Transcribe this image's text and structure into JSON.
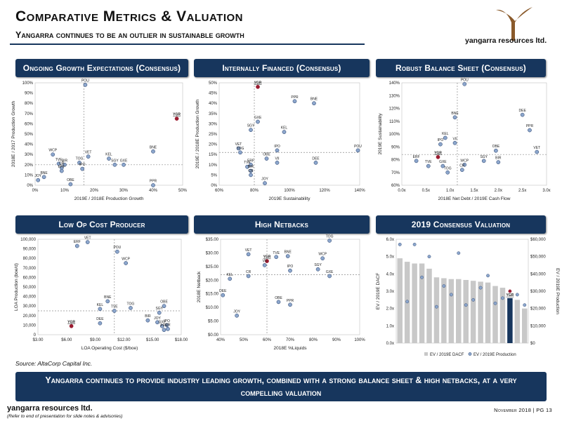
{
  "header": {
    "title": "Comparative Metrics & Valuation",
    "subtitle": "Yangarra continues to be an outlier in sustainable growth"
  },
  "logo": {
    "text": "yangarra resources ltd.",
    "glyph_color": "#8a5a2b"
  },
  "colors": {
    "navy": "#17365d",
    "point": "#8ca6cc",
    "point_edge": "#1f3864",
    "highlight": "#9b1b30",
    "bar": "#c8c8c8",
    "bar_dark": "#17365d"
  },
  "panels": {
    "p1": "Ongoing Growth Expectations (Consensus)",
    "p2": "Internally Financed (Consensus)",
    "p3": "Robust Balance Sheet (Consensus)",
    "p4": "Low Op Cost Producer",
    "p5": "High Netbacks",
    "p6": "2019 Consensus Valuation"
  },
  "source": "Source: AltaCorp Capital Inc.",
  "banner": "Yangarra continues to provide industry leading growth, combined with a strong balance sheet & high netbacks, at a very compelling valuation",
  "footer": {
    "brand": "yangarra resources ltd.",
    "note": "(Refer to end of presentation for slide notes & advisories)",
    "date": "November 2018 | PG 13"
  },
  "chart_data": [
    {
      "id": "growth",
      "type": "scatter",
      "xlabel": "2019E / 2018E Production Growth",
      "ylabel": "2018E / 2017 Production Growth",
      "xlim": [
        0,
        50
      ],
      "ylim": [
        0,
        100
      ],
      "xticks": [
        0,
        10,
        20,
        30,
        40,
        50
      ],
      "xfmt": "pct",
      "yticks": [
        0,
        10,
        20,
        30,
        40,
        50,
        60,
        70,
        80,
        90,
        100
      ],
      "yfmt": "pct",
      "ref_x": 16.5,
      "ref_y": 20,
      "points": [
        {
          "label": "POU",
          "x": 17,
          "y": 98
        },
        {
          "label": "YGR",
          "x": 48,
          "y": 65,
          "highlight": true
        },
        {
          "label": "BNE",
          "x": 40,
          "y": 33
        },
        {
          "label": "WCP",
          "x": 6,
          "y": 30
        },
        {
          "label": "VET",
          "x": 18,
          "y": 28
        },
        {
          "label": "KEL",
          "x": 25,
          "y": 26
        },
        {
          "label": "SGY",
          "x": 27,
          "y": 20
        },
        {
          "label": "GXE",
          "x": 30,
          "y": 20
        },
        {
          "label": "TVE",
          "x": 8,
          "y": 21
        },
        {
          "label": "BIR",
          "x": 10,
          "y": 20
        },
        {
          "label": "TOG",
          "x": 15,
          "y": 22
        },
        {
          "label": "CR",
          "x": 9,
          "y": 17
        },
        {
          "label": "IPO",
          "x": 16,
          "y": 16
        },
        {
          "label": "ERF",
          "x": 9,
          "y": 14
        },
        {
          "label": "BNE",
          "x": 3,
          "y": 8
        },
        {
          "label": "JOY",
          "x": 1,
          "y": 5
        },
        {
          "label": "OBE",
          "x": 12,
          "y": 1
        },
        {
          "label": "PPR",
          "x": 40,
          "y": -3
        }
      ]
    },
    {
      "id": "financed",
      "type": "scatter",
      "xlabel": "2019E Sustainability",
      "ylabel": "2019E / 2018E Production Growth",
      "xlim": [
        60,
        140
      ],
      "ylim": [
        0,
        50
      ],
      "xticks": [
        60,
        80,
        100,
        120,
        140
      ],
      "xfmt": "pct",
      "yticks": [
        0,
        5,
        10,
        15,
        20,
        25,
        30,
        35,
        40,
        45,
        50
      ],
      "yfmt": "pct",
      "ref_x": 80,
      "ref_y": 16,
      "points": [
        {
          "label": "YGR",
          "x": 82,
          "y": 48,
          "highlight": true
        },
        {
          "label": "PPR",
          "x": 103,
          "y": 41
        },
        {
          "label": "BNE",
          "x": 114,
          "y": 40
        },
        {
          "label": "GXE",
          "x": 82,
          "y": 31
        },
        {
          "label": "SGY",
          "x": 78,
          "y": 27
        },
        {
          "label": "KEL",
          "x": 97,
          "y": 26
        },
        {
          "label": "VET",
          "x": 71,
          "y": 18
        },
        {
          "label": "TOG",
          "x": 72,
          "y": 16
        },
        {
          "label": "IPO",
          "x": 93,
          "y": 17
        },
        {
          "label": "POU",
          "x": 139,
          "y": 17
        },
        {
          "label": "OBE",
          "x": 87,
          "y": 13
        },
        {
          "label": "DEE",
          "x": 115,
          "y": 11
        },
        {
          "label": "TVE",
          "x": 76,
          "y": 9
        },
        {
          "label": "ERF",
          "x": 78,
          "y": 10
        },
        {
          "label": "VII",
          "x": 93,
          "y": 11
        },
        {
          "label": "BIR",
          "x": 78,
          "y": 7
        },
        {
          "label": "CR",
          "x": 78,
          "y": 5
        },
        {
          "label": "JOY",
          "x": 86,
          "y": 1
        }
      ]
    },
    {
      "id": "balance",
      "type": "scatter",
      "xlabel": "2018E Net Debt / 2019E Cash Flow",
      "ylabel": "2019E Sustainability",
      "xlim": [
        0,
        3
      ],
      "ylim": [
        60,
        140
      ],
      "xticks": [
        0,
        0.5,
        1,
        1.5,
        2,
        2.5,
        3
      ],
      "xfmt": "x",
      "yticks": [
        60,
        70,
        80,
        90,
        100,
        110,
        120,
        130,
        140
      ],
      "yfmt": "pct",
      "ref_x": 1.15,
      "ref_y": 84,
      "points": [
        {
          "label": "POU",
          "x": 1.3,
          "y": 139
        },
        {
          "label": "DEE",
          "x": 2.5,
          "y": 115
        },
        {
          "label": "BNE",
          "x": 1.1,
          "y": 113
        },
        {
          "label": "PPR",
          "x": 2.65,
          "y": 103
        },
        {
          "label": "KEL",
          "x": 0.9,
          "y": 97
        },
        {
          "label": "VII",
          "x": 1.1,
          "y": 93
        },
        {
          "label": "IPO",
          "x": 0.8,
          "y": 92
        },
        {
          "label": "OBE",
          "x": 1.95,
          "y": 87
        },
        {
          "label": "VET",
          "x": 2.8,
          "y": 86
        },
        {
          "label": "YGR",
          "x": 0.75,
          "y": 82,
          "highlight": true
        },
        {
          "label": "ERF",
          "x": 0.3,
          "y": 79
        },
        {
          "label": "SGY",
          "x": 1.7,
          "y": 79
        },
        {
          "label": "BIR",
          "x": 2.0,
          "y": 78
        },
        {
          "label": "WCP",
          "x": 1.3,
          "y": 76
        },
        {
          "label": "TVE",
          "x": 0.55,
          "y": 75
        },
        {
          "label": "GXE",
          "x": 0.85,
          "y": 75
        },
        {
          "label": "CR",
          "x": 1.25,
          "y": 72
        },
        {
          "label": "TOG",
          "x": 0.95,
          "y": 70
        }
      ]
    },
    {
      "id": "opcost",
      "type": "scatter",
      "xlabel": "LOA Operating Cost ($/boe)",
      "ylabel": "LOA Production (boe/d)",
      "xlim": [
        3,
        18
      ],
      "ylim": [
        0,
        100000
      ],
      "xticks": [
        3,
        6,
        9,
        12,
        15,
        18
      ],
      "xfmt": "usd",
      "yticks": [
        0,
        10000,
        20000,
        30000,
        40000,
        50000,
        60000,
        70000,
        80000,
        90000,
        100000
      ],
      "yfmt": "num",
      "ref_x": 11,
      "ref_y": 25000,
      "points": [
        {
          "label": "VET",
          "x": 8.2,
          "y": 97000
        },
        {
          "label": "ERF",
          "x": 7.1,
          "y": 93000
        },
        {
          "label": "POU",
          "x": 11.3,
          "y": 87000
        },
        {
          "label": "WCP",
          "x": 12.2,
          "y": 75000
        },
        {
          "label": "BNE",
          "x": 10.3,
          "y": 35000
        },
        {
          "label": "KEL",
          "x": 9.5,
          "y": 27000
        },
        {
          "label": "TOG",
          "x": 12.7,
          "y": 28000
        },
        {
          "label": "OBE",
          "x": 16.2,
          "y": 30000
        },
        {
          "label": "SGY",
          "x": 15.7,
          "y": 23000
        },
        {
          "label": "TVE",
          "x": 11.0,
          "y": 25000
        },
        {
          "label": "BIR",
          "x": 14.5,
          "y": 15000
        },
        {
          "label": "DEE",
          "x": 9.5,
          "y": 12000
        },
        {
          "label": "JOY",
          "x": 15.5,
          "y": 13000
        },
        {
          "label": "IPO",
          "x": 16.5,
          "y": 10000
        },
        {
          "label": "GXE",
          "x": 16.0,
          "y": 9000
        },
        {
          "label": "YGR",
          "x": 6.5,
          "y": 9000,
          "highlight": true
        },
        {
          "label": "CR",
          "x": 16.6,
          "y": 6000
        },
        {
          "label": "PPR",
          "x": 16.2,
          "y": 5000
        }
      ]
    },
    {
      "id": "netbacks",
      "type": "scatter",
      "xlabel": "2018E %Liquids",
      "ylabel": "2018E Netback",
      "xlim": [
        40,
        100
      ],
      "ylim": [
        0,
        35
      ],
      "xticks": [
        40,
        50,
        60,
        70,
        80,
        90,
        100
      ],
      "xfmt": "pct",
      "yticks": [
        0,
        5,
        10,
        15,
        20,
        25,
        30,
        35
      ],
      "yfmt": "usd2",
      "ref_x": 60,
      "ref_y": 22,
      "points": [
        {
          "label": "TOG",
          "x": 87,
          "y": 34.5
        },
        {
          "label": "VET",
          "x": 52,
          "y": 29.5
        },
        {
          "label": "TVE",
          "x": 64,
          "y": 28.5
        },
        {
          "label": "BNE",
          "x": 69,
          "y": 28.8
        },
        {
          "label": "WCP",
          "x": 84,
          "y": 28
        },
        {
          "label": "YGR",
          "x": 60,
          "y": 27,
          "highlight": true
        },
        {
          "label": "VII",
          "x": 59,
          "y": 25.5
        },
        {
          "label": "IPO",
          "x": 70,
          "y": 23.5
        },
        {
          "label": "SGY",
          "x": 82,
          "y": 24
        },
        {
          "label": "GXE",
          "x": 87,
          "y": 21.5
        },
        {
          "label": "CR",
          "x": 52,
          "y": 21.5
        },
        {
          "label": "KEL",
          "x": 44,
          "y": 20.5
        },
        {
          "label": "DEE",
          "x": 41,
          "y": 14.5
        },
        {
          "label": "OBE",
          "x": 65,
          "y": 12
        },
        {
          "label": "PPR",
          "x": 70,
          "y": 11
        },
        {
          "label": "JOY",
          "x": 47,
          "y": 7
        }
      ]
    },
    {
      "id": "valuation",
      "type": "bar",
      "categories": [
        "",
        "",
        "",
        "",
        "",
        "",
        "",
        "",
        "",
        "",
        "",
        "",
        "",
        "",
        "",
        "YGR",
        "",
        ""
      ],
      "highlight_index": 15,
      "series": [
        {
          "name": "EV / 2019E DACF",
          "axis": "left",
          "values": [
            4.9,
            4.7,
            4.6,
            4.6,
            4.3,
            3.8,
            3.75,
            3.7,
            3.7,
            3.65,
            3.6,
            3.55,
            3.5,
            3.3,
            3.2,
            2.6,
            2.5,
            2.0
          ]
        },
        {
          "name": "EV / 2019E Production",
          "axis": "right",
          "values": [
            57000,
            24000,
            57000,
            38000,
            50000,
            21000,
            33000,
            28000,
            52000,
            22000,
            25000,
            32000,
            39000,
            23000,
            26000,
            30000,
            28000,
            22000
          ]
        }
      ],
      "ylabel": "EV / 2019E DACF",
      "y2label": "EV / 2019E Production",
      "ylim": [
        0,
        6
      ],
      "y2lim": [
        0,
        60000
      ],
      "yticks": [
        0,
        1,
        2,
        3,
        4,
        5,
        6
      ],
      "y2ticks": [
        0,
        10000,
        20000,
        30000,
        40000,
        50000,
        60000
      ]
    }
  ]
}
